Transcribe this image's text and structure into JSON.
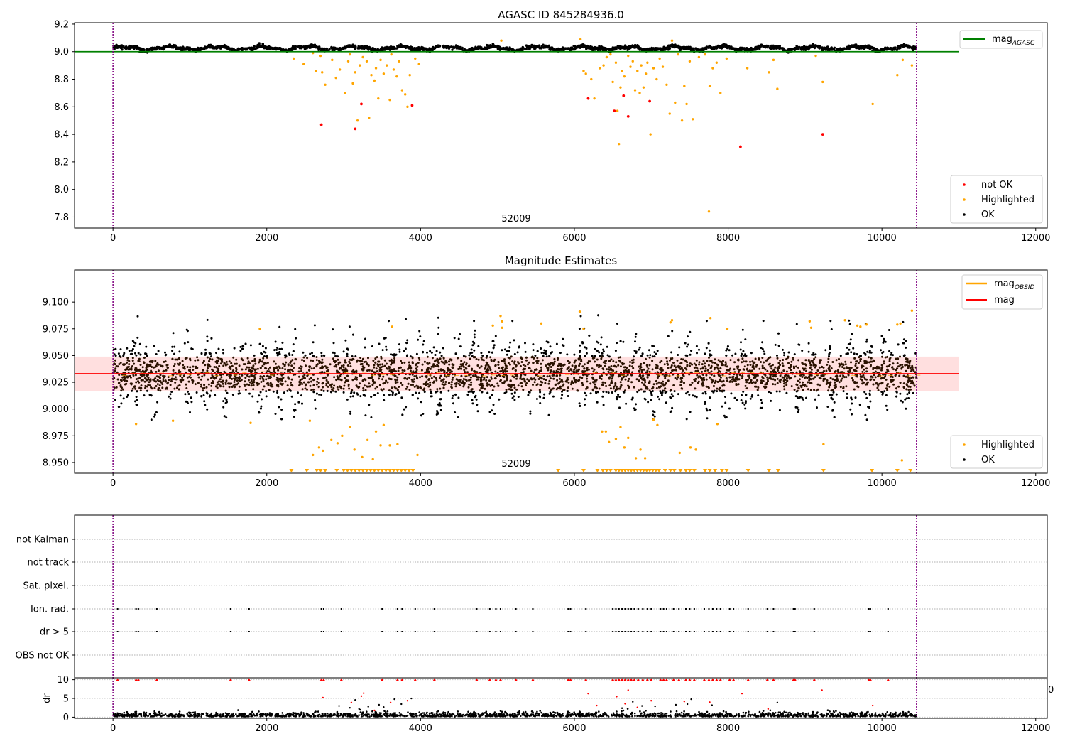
{
  "chart_data": [
    {
      "type": "scatter",
      "title": "AGASC ID 845284936.0",
      "xlim": [
        -500,
        12150
      ],
      "ylim": [
        7.72,
        9.21
      ],
      "xticks": [
        0,
        2000,
        4000,
        6000,
        8000,
        10000,
        12000
      ],
      "yticks": [
        7.8,
        8.0,
        8.2,
        8.4,
        8.6,
        8.8,
        9.0,
        9.2
      ],
      "ytick_labels": [
        "7.8",
        "8.0",
        "8.2",
        "8.4",
        "8.6",
        "8.8",
        "9.0",
        "9.2"
      ],
      "obsid_label": "52009",
      "obsid_label_x": 5000,
      "vlines": [
        0,
        10450
      ],
      "mag_agasc": 9.0,
      "mag_agasc_xrange": [
        -500,
        11000
      ],
      "series": [
        {
          "name": "not OK",
          "color": "#ff0000",
          "points": [
            [
              2710,
              8.47
            ],
            [
              3150,
              8.44
            ],
            [
              3230,
              8.62
            ],
            [
              3890,
              8.61
            ],
            [
              6180,
              8.66
            ],
            [
              6520,
              8.57
            ],
            [
              6640,
              8.68
            ],
            [
              6700,
              8.53
            ],
            [
              6980,
              8.64
            ],
            [
              8160,
              8.31
            ],
            [
              9230,
              8.4
            ]
          ]
        },
        {
          "name": "Highlighted",
          "color": "#ffa500",
          "points": [
            [
              2350,
              8.95
            ],
            [
              2480,
              8.91
            ],
            [
              2600,
              8.99
            ],
            [
              2640,
              8.86
            ],
            [
              2700,
              8.97
            ],
            [
              2720,
              8.85
            ],
            [
              2760,
              8.76
            ],
            [
              2850,
              8.94
            ],
            [
              2900,
              8.81
            ],
            [
              2950,
              8.87
            ],
            [
              3020,
              8.7
            ],
            [
              3060,
              8.93
            ],
            [
              3080,
              8.98
            ],
            [
              3120,
              8.77
            ],
            [
              3150,
              8.85
            ],
            [
              3180,
              8.5
            ],
            [
              3210,
              8.9
            ],
            [
              3250,
              8.96
            ],
            [
              3300,
              8.93
            ],
            [
              3330,
              8.52
            ],
            [
              3360,
              8.83
            ],
            [
              3400,
              8.79
            ],
            [
              3420,
              8.88
            ],
            [
              3450,
              8.66
            ],
            [
              3480,
              8.94
            ],
            [
              3520,
              8.84
            ],
            [
              3560,
              8.9
            ],
            [
              3600,
              8.65
            ],
            [
              3620,
              8.98
            ],
            [
              3650,
              8.87
            ],
            [
              3690,
              8.82
            ],
            [
              3720,
              8.93
            ],
            [
              3760,
              8.72
            ],
            [
              3800,
              8.69
            ],
            [
              3830,
              8.6
            ],
            [
              3860,
              8.83
            ],
            [
              3930,
              8.95
            ],
            [
              3980,
              8.91
            ],
            [
              5050,
              9.08
            ],
            [
              6080,
              9.09
            ],
            [
              6120,
              8.86
            ],
            [
              6150,
              8.84
            ],
            [
              6220,
              8.8
            ],
            [
              6260,
              8.66
            ],
            [
              6330,
              8.88
            ],
            [
              6380,
              8.9
            ],
            [
              6420,
              8.96
            ],
            [
              6470,
              8.98
            ],
            [
              6500,
              8.78
            ],
            [
              6540,
              8.92
            ],
            [
              6560,
              8.57
            ],
            [
              6580,
              8.33
            ],
            [
              6600,
              8.74
            ],
            [
              6620,
              8.86
            ],
            [
              6650,
              8.82
            ],
            [
              6700,
              8.97
            ],
            [
              6730,
              8.89
            ],
            [
              6760,
              8.93
            ],
            [
              6790,
              8.72
            ],
            [
              6820,
              8.86
            ],
            [
              6850,
              8.7
            ],
            [
              6870,
              8.9
            ],
            [
              6900,
              8.74
            ],
            [
              6930,
              8.84
            ],
            [
              6950,
              8.92
            ],
            [
              6990,
              8.4
            ],
            [
              7030,
              8.88
            ],
            [
              7070,
              8.8
            ],
            [
              7110,
              8.95
            ],
            [
              7150,
              8.89
            ],
            [
              7200,
              8.76
            ],
            [
              7240,
              8.55
            ],
            [
              7270,
              9.08
            ],
            [
              7310,
              8.63
            ],
            [
              7350,
              8.98
            ],
            [
              7400,
              8.5
            ],
            [
              7430,
              8.75
            ],
            [
              7460,
              8.62
            ],
            [
              7500,
              8.93
            ],
            [
              7540,
              8.51
            ],
            [
              7620,
              8.96
            ],
            [
              7700,
              8.98
            ],
            [
              7750,
              7.84
            ],
            [
              7760,
              8.75
            ],
            [
              7800,
              8.88
            ],
            [
              7850,
              8.92
            ],
            [
              7900,
              8.7
            ],
            [
              7980,
              8.95
            ],
            [
              8250,
              8.88
            ],
            [
              8530,
              8.85
            ],
            [
              8590,
              8.94
            ],
            [
              8640,
              8.73
            ],
            [
              9140,
              8.97
            ],
            [
              9230,
              8.78
            ],
            [
              9880,
              8.62
            ],
            [
              10200,
              8.83
            ],
            [
              10270,
              8.94
            ],
            [
              10390,
              8.9
            ]
          ]
        },
        {
          "name": "OK",
          "color": "#000000",
          "band": [
            9.0,
            9.06
          ]
        }
      ],
      "legend": [
        {
          "label": "mag",
          "sub": "AGASC",
          "color": "#008000",
          "kind": "line"
        },
        {
          "label": "not OK",
          "color": "#ff0000",
          "kind": "marker"
        },
        {
          "label": "Highlighted",
          "color": "#ffa500",
          "kind": "marker"
        },
        {
          "label": "OK",
          "color": "#000000",
          "kind": "marker"
        }
      ]
    },
    {
      "type": "scatter",
      "title": "Magnitude Estimates",
      "xlim": [
        -500,
        12150
      ],
      "ylim": [
        8.94,
        9.13
      ],
      "xticks": [
        0,
        2000,
        4000,
        6000,
        8000,
        10000,
        12000
      ],
      "yticks": [
        8.95,
        8.975,
        9.0,
        9.025,
        9.05,
        9.075,
        9.1
      ],
      "ytick_labels": [
        "8.950",
        "8.975",
        "9.000",
        "9.025",
        "9.050",
        "9.075",
        "9.100"
      ],
      "obsid_label": "52009",
      "obsid_label_x": 5000,
      "vlines": [
        0,
        10450
      ],
      "mag": 9.033,
      "mag_band": [
        9.017,
        9.049
      ],
      "mag_xrange": [
        -500,
        11000
      ],
      "mag_obsid_color": "#ffa500",
      "mag_color": "#ff0000",
      "band_color": "#ffc0c0",
      "highlighted_high": [
        [
          300,
          8.986
        ],
        [
          780,
          8.989
        ],
        [
          1790,
          8.987
        ],
        [
          1910,
          9.075
        ],
        [
          2560,
          8.989
        ],
        [
          2600,
          8.957
        ],
        [
          2680,
          8.964
        ],
        [
          2730,
          8.961
        ],
        [
          2840,
          8.971
        ],
        [
          2920,
          8.968
        ],
        [
          2980,
          8.975
        ],
        [
          3080,
          8.983
        ],
        [
          3140,
          8.962
        ],
        [
          3240,
          8.955
        ],
        [
          3310,
          8.971
        ],
        [
          3380,
          8.953
        ],
        [
          3420,
          8.979
        ],
        [
          3480,
          8.966
        ],
        [
          3520,
          8.985
        ],
        [
          3600,
          8.966
        ],
        [
          3630,
          9.077
        ],
        [
          3700,
          8.967
        ],
        [
          3960,
          8.957
        ],
        [
          4940,
          9.078
        ],
        [
          5040,
          9.087
        ],
        [
          5060,
          9.082
        ],
        [
          5060,
          9.076
        ],
        [
          5570,
          9.08
        ],
        [
          6070,
          9.091
        ],
        [
          6120,
          9.075
        ],
        [
          6360,
          8.979
        ],
        [
          6410,
          8.979
        ],
        [
          6450,
          8.969
        ],
        [
          6540,
          8.972
        ],
        [
          6600,
          8.983
        ],
        [
          6650,
          8.964
        ],
        [
          6700,
          8.973
        ],
        [
          6800,
          8.954
        ],
        [
          6860,
          8.962
        ],
        [
          6920,
          8.954
        ],
        [
          7030,
          8.99
        ],
        [
          7080,
          8.985
        ],
        [
          7250,
          9.081
        ],
        [
          7270,
          9.083
        ],
        [
          7370,
          8.959
        ],
        [
          7510,
          8.964
        ],
        [
          7580,
          8.962
        ],
        [
          7770,
          9.085
        ],
        [
          7860,
          8.986
        ],
        [
          7990,
          9.075
        ],
        [
          9060,
          9.082
        ],
        [
          9080,
          9.076
        ],
        [
          9240,
          8.967
        ],
        [
          9520,
          9.083
        ],
        [
          9680,
          9.078
        ],
        [
          9720,
          9.077
        ],
        [
          9800,
          9.079
        ],
        [
          10200,
          9.079
        ],
        [
          10240,
          9.08
        ],
        [
          10260,
          8.952
        ],
        [
          10390,
          9.092
        ]
      ],
      "highlighted_low_x": [
        2320,
        2520,
        2650,
        2700,
        2760,
        2910,
        3000,
        3050,
        3100,
        3150,
        3200,
        3250,
        3300,
        3350,
        3400,
        3450,
        3500,
        3550,
        3600,
        3650,
        3700,
        3750,
        3800,
        3850,
        3900,
        5790,
        6120,
        6300,
        6370,
        6420,
        6470,
        6540,
        6580,
        6620,
        6660,
        6700,
        6740,
        6780,
        6820,
        6860,
        6900,
        6940,
        6980,
        7020,
        7060,
        7100,
        7180,
        7250,
        7300,
        7380,
        7450,
        7500,
        7560,
        7700,
        7760,
        7830,
        7920,
        7980,
        8260,
        8530,
        8650,
        9240,
        9870,
        10200,
        10370
      ],
      "legend": [
        {
          "label": "mag",
          "sub": "OBSID",
          "color": "#ffa500",
          "kind": "line"
        },
        {
          "label": "mag",
          "color": "#ff0000",
          "kind": "line"
        },
        {
          "label": "Highlighted",
          "color": "#ffa500",
          "kind": "marker"
        },
        {
          "label": "OK",
          "color": "#000000",
          "kind": "marker"
        }
      ]
    },
    {
      "type": "scatter",
      "title": "",
      "xlim": [
        -500,
        12150
      ],
      "vlines": [
        0,
        10450
      ],
      "flag_rows": [
        "not Kalman",
        "not track",
        "Sat. pixel.",
        "Ion. rad.",
        "dr > 5",
        "OBS not OK"
      ],
      "flag_x": [
        60,
        300,
        330,
        570,
        1530,
        1770,
        2710,
        2740,
        2970,
        3500,
        3700,
        3760,
        3930,
        4180,
        4730,
        4900,
        4980,
        5040,
        5240,
        5460,
        5920,
        5950,
        6150,
        6500,
        6540,
        6580,
        6620,
        6660,
        6700,
        6740,
        6780,
        6830,
        6890,
        6950,
        7000,
        7120,
        7160,
        7200,
        7290,
        7360,
        7450,
        7500,
        7560,
        7690,
        7750,
        7800,
        7850,
        7900,
        8020,
        8070,
        8260,
        8510,
        8590,
        8850,
        8870,
        9120,
        9830,
        9850,
        10080
      ],
      "dr_ylim": [
        -0.3,
        10.5
      ],
      "dr_yticks": [
        0,
        5,
        10
      ],
      "dr_ylabel": "dr",
      "dr_xticks": [
        0,
        2000,
        4000,
        6000,
        8000,
        10000,
        12000
      ],
      "dr_mid_points": [
        [
          2730,
          5.2
        ],
        [
          2940,
          3.0
        ],
        [
          3080,
          2.5
        ],
        [
          3100,
          3.9
        ],
        [
          3150,
          4.6
        ],
        [
          3200,
          2.2
        ],
        [
          3230,
          5.6
        ],
        [
          3260,
          6.4
        ],
        [
          3320,
          2.8
        ],
        [
          3400,
          1.8
        ],
        [
          3460,
          3.3
        ],
        [
          3520,
          2.7
        ],
        [
          3610,
          3.9
        ],
        [
          3660,
          4.8
        ],
        [
          3750,
          3.5
        ],
        [
          3830,
          4.4
        ],
        [
          3880,
          5.0
        ],
        [
          6180,
          6.3
        ],
        [
          6290,
          3.1
        ],
        [
          6550,
          5.5
        ],
        [
          6620,
          2.4
        ],
        [
          6660,
          3.6
        ],
        [
          6700,
          7.2
        ],
        [
          6760,
          4.1
        ],
        [
          6820,
          2.6
        ],
        [
          6880,
          3.0
        ],
        [
          6930,
          1.7
        ],
        [
          7000,
          4.4
        ],
        [
          7050,
          2.9
        ],
        [
          7320,
          3.3
        ],
        [
          7430,
          4.2
        ],
        [
          7470,
          3.5
        ],
        [
          7520,
          4.8
        ],
        [
          7760,
          4.0
        ],
        [
          7790,
          3.2
        ],
        [
          8180,
          6.3
        ],
        [
          8520,
          2.2
        ],
        [
          8640,
          3.9
        ],
        [
          9220,
          7.2
        ],
        [
          9880,
          3.1
        ]
      ],
      "dr_top_x": [
        60,
        300,
        330,
        570,
        1530,
        1770,
        2710,
        2740,
        2970,
        3500,
        3700,
        3760,
        3930,
        4180,
        4730,
        4900,
        4980,
        5040,
        5240,
        5460,
        5920,
        5950,
        6150,
        6500,
        6540,
        6580,
        6620,
        6660,
        6700,
        6740,
        6780,
        6830,
        6890,
        6950,
        7000,
        7120,
        7160,
        7200,
        7290,
        7360,
        7450,
        7500,
        7560,
        7690,
        7750,
        7800,
        7850,
        7900,
        8020,
        8070,
        8260,
        8510,
        8590,
        8850,
        8870,
        9120,
        9830,
        9850,
        10080
      ],
      "stray_tick_label": "0"
    }
  ]
}
